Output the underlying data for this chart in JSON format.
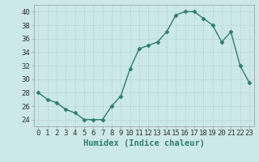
{
  "x": [
    0,
    1,
    2,
    3,
    4,
    5,
    6,
    7,
    8,
    9,
    10,
    11,
    12,
    13,
    14,
    15,
    16,
    17,
    18,
    19,
    20,
    21,
    22,
    23
  ],
  "y": [
    28,
    27,
    26.5,
    25.5,
    25,
    24,
    24,
    24,
    26,
    27.5,
    31.5,
    34.5,
    35,
    35.5,
    37,
    39.5,
    40,
    40,
    39,
    38,
    35.5,
    37,
    32,
    29.5
  ],
  "line_color": "#2e7d6e",
  "marker": "D",
  "marker_size": 2.5,
  "bg_color": "#cce8e8",
  "grid_color": "#b8d8d8",
  "xlabel": "Humidex (Indice chaleur)",
  "xlabel_fontsize": 7.5,
  "xtick_labels": [
    "0",
    "1",
    "2",
    "3",
    "4",
    "5",
    "6",
    "7",
    "8",
    "9",
    "10",
    "11",
    "12",
    "13",
    "14",
    "15",
    "16",
    "17",
    "18",
    "19",
    "20",
    "21",
    "22",
    "23"
  ],
  "yticks": [
    24,
    26,
    28,
    30,
    32,
    34,
    36,
    38,
    40
  ],
  "ylim": [
    23.0,
    41.0
  ],
  "xlim": [
    -0.5,
    23.5
  ],
  "tick_fontsize": 6.5,
  "linewidth": 1.0
}
